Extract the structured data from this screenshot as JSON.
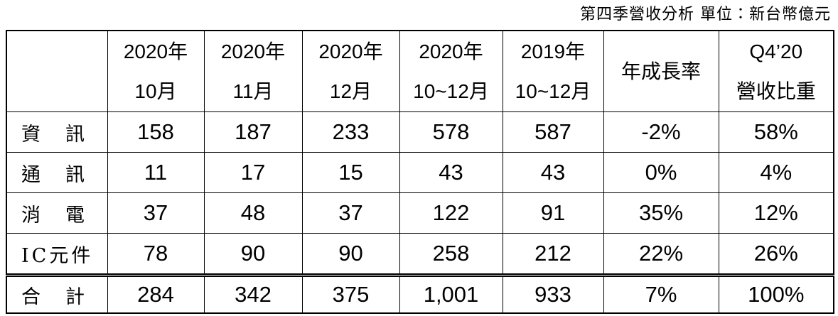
{
  "caption": "第四季營收分析 單位：新台幣億元",
  "table": {
    "header": [
      [],
      [
        "2020年",
        "10月"
      ],
      [
        "2020年",
        "11月"
      ],
      [
        "2020年",
        "12月"
      ],
      [
        "2020年",
        "10~12月"
      ],
      [
        "2019年",
        "10~12月"
      ],
      [
        "年成長率"
      ],
      [
        "Q4’20",
        "營收比重"
      ]
    ],
    "rows": [
      [
        "資　訊",
        "158",
        "187",
        "233",
        "578",
        "587",
        "-2%",
        "58%"
      ],
      [
        "通　訊",
        "11",
        "17",
        "15",
        "43",
        "43",
        "0%",
        "4%"
      ],
      [
        "消　電",
        "37",
        "48",
        "37",
        "122",
        "91",
        "35%",
        "12%"
      ],
      [
        "IC元件",
        "78",
        "90",
        "90",
        "258",
        "212",
        "22%",
        "26%"
      ],
      [
        "合　計",
        "284",
        "342",
        "375",
        "1,001",
        "933",
        "7%",
        "100%"
      ]
    ]
  }
}
